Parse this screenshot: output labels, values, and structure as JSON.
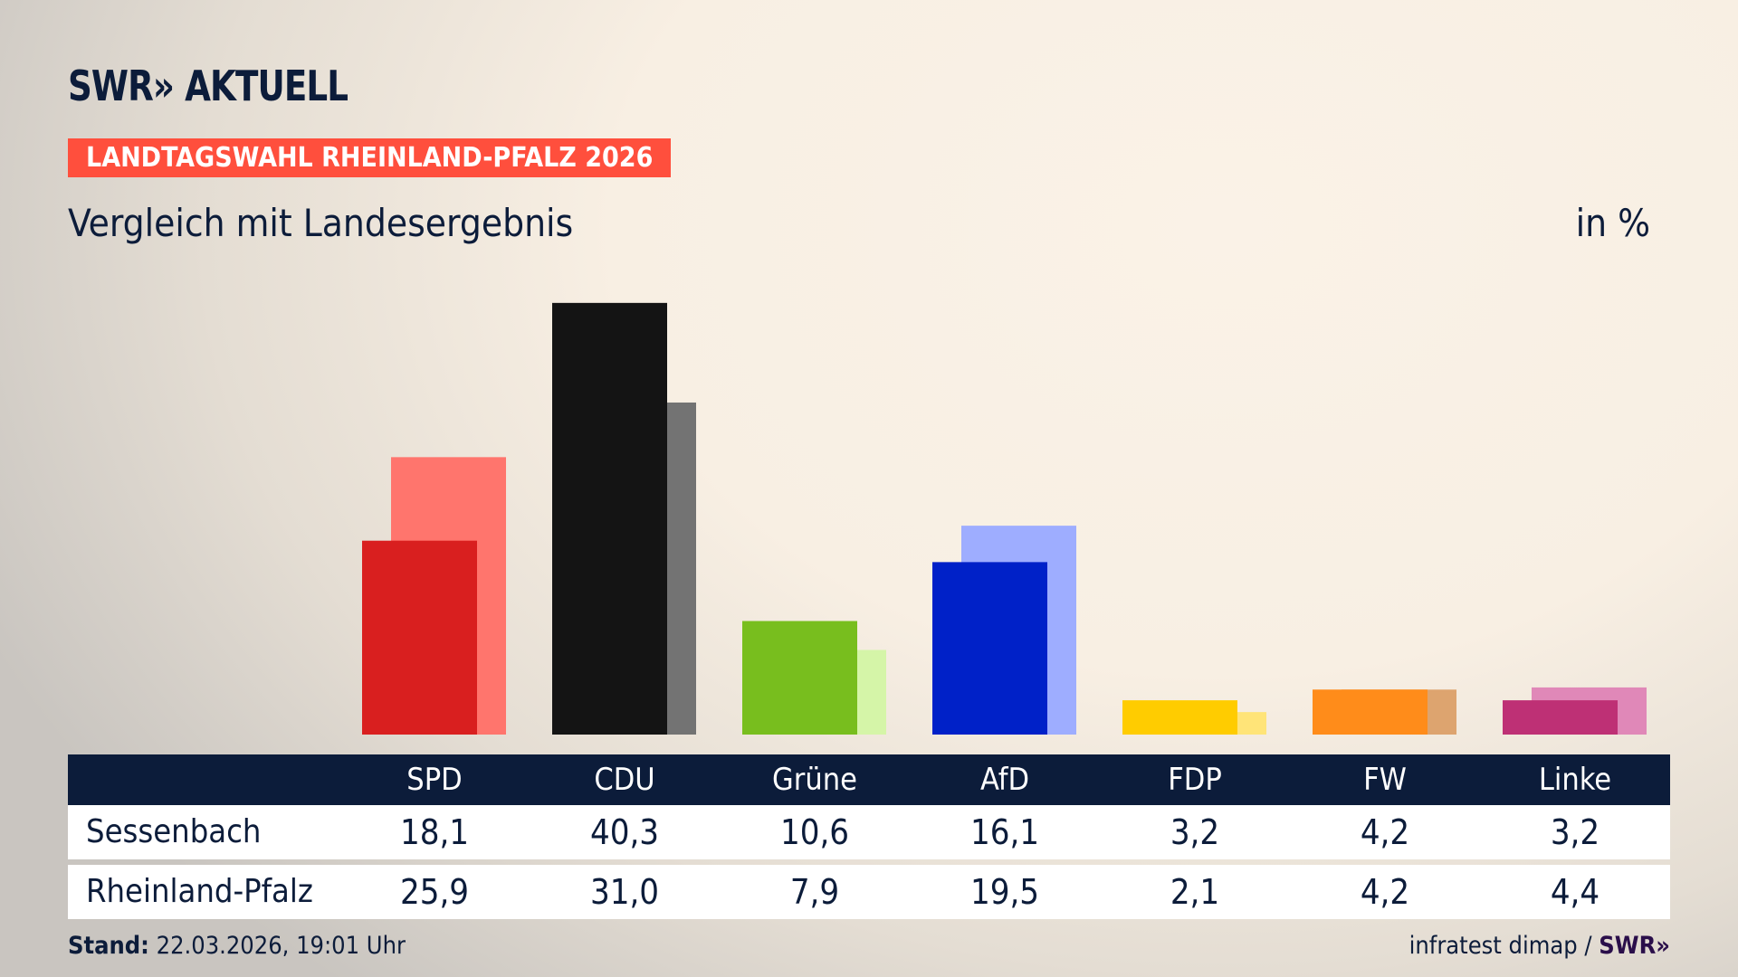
{
  "header": {
    "logo": "SWR» AKTUELL",
    "banner": "LANDTAGSWAHL RHEINLAND-PFALZ 2026",
    "title": "Vergleich mit Landesergebnis",
    "unit": "in %"
  },
  "chart_data": {
    "type": "bar",
    "categories": [
      "SPD",
      "CDU",
      "Grüne",
      "AfD",
      "FDP",
      "FW",
      "Linke"
    ],
    "series": [
      {
        "name": "Sessenbach",
        "values": [
          18.1,
          40.3,
          10.6,
          16.1,
          3.2,
          4.2,
          3.2
        ],
        "colors": [
          "#d91f1f",
          "#141414",
          "#78be1e",
          "#0021c8",
          "#ffcc00",
          "#ff8c1a",
          "#be3075"
        ]
      },
      {
        "name": "Rheinland-Pfalz",
        "values": [
          25.9,
          31.0,
          7.9,
          19.5,
          2.1,
          4.2,
          4.4
        ],
        "colors": [
          "#ff756d",
          "#737373",
          "#d5f5a8",
          "#9eadff",
          "#ffe478",
          "#dda46f",
          "#e088b8"
        ]
      }
    ],
    "display_values": [
      [
        "18,1",
        "40,3",
        "10,6",
        "16,1",
        "3,2",
        "4,2",
        "3,2"
      ],
      [
        "25,9",
        "31,0",
        "7,9",
        "19,5",
        "2,1",
        "4,2",
        "4,4"
      ]
    ],
    "ylim": [
      0,
      40.3
    ]
  },
  "footer": {
    "stand_label": "Stand:",
    "stand_value": "22.03.2026, 19:01 Uhr",
    "source": "infratest dimap / ",
    "source_logo": "SWR»"
  }
}
